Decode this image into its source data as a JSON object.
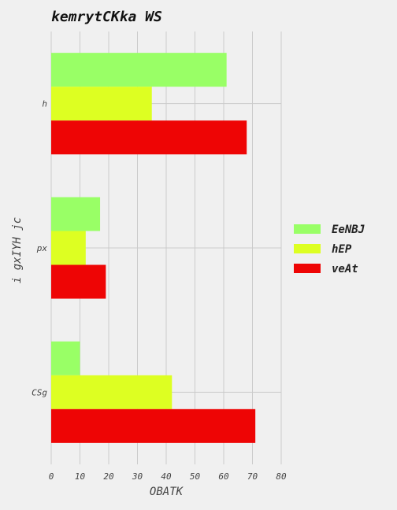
{
  "chart_data": {
    "type": "bar",
    "orientation": "horizontal",
    "title": "kemrytCKka WS",
    "xlabel": "OBATK",
    "ylabel": "i gxIYH jc",
    "categories": [
      "h",
      "px",
      "CSg"
    ],
    "xlim": [
      0,
      80
    ],
    "xticks": [
      "0",
      "10",
      "20",
      "30",
      "40",
      "50",
      "60",
      "70",
      "80"
    ],
    "grid": true,
    "legend_position": "right",
    "series": [
      {
        "name": "EeNBJ",
        "color": "#99ff66",
        "values": [
          61,
          17,
          10
        ]
      },
      {
        "name": "hEP",
        "color": "#ddff22",
        "values": [
          35,
          12,
          42
        ]
      },
      {
        "name": "veAt",
        "color": "#ee0505",
        "values": [
          68,
          19,
          71
        ]
      }
    ]
  }
}
